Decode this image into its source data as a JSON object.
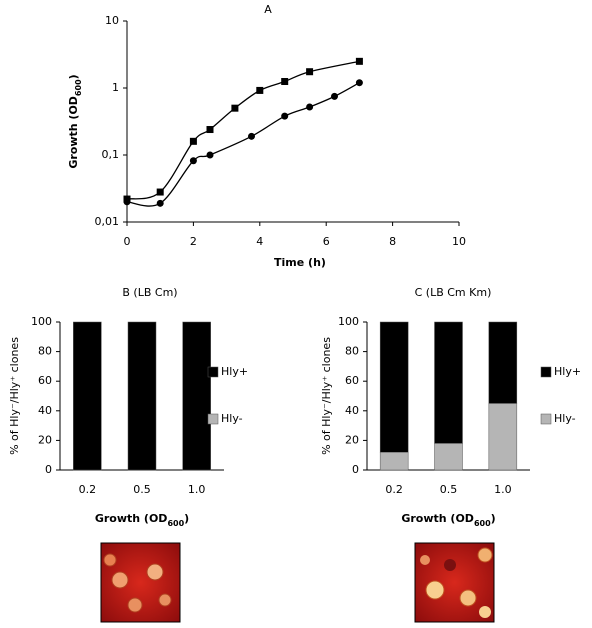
{
  "chart_data": [
    {
      "type": "line",
      "title": "A",
      "xlabel": "Time (h)",
      "ylabel": [
        "Growth (OD",
        "600",
        ")"
      ],
      "yscale": "log",
      "xlim": [
        0,
        10
      ],
      "xticks": [
        0,
        2,
        4,
        6,
        8,
        10
      ],
      "ylim": [
        0.01,
        10
      ],
      "yticks": [
        {
          "value": 0.01,
          "label": "0,01"
        },
        {
          "value": 0.1,
          "label": "0,1"
        },
        1,
        10
      ],
      "series": [
        {
          "color": "#000000",
          "marker": "square",
          "x": [
            0,
            1,
            2,
            2.5,
            3.25,
            4,
            4.75,
            5.5,
            7
          ],
          "values": [
            0.022,
            0.028,
            0.16,
            0.24,
            0.5,
            0.92,
            1.25,
            1.75,
            2.5
          ]
        },
        {
          "color": "#000000",
          "marker": "circle",
          "x": [
            0,
            1,
            2,
            2.5,
            3.75,
            4.75,
            5.5,
            6.25,
            7
          ],
          "values": [
            0.02,
            0.019,
            0.082,
            0.1,
            0.19,
            0.38,
            0.52,
            0.75,
            1.2
          ]
        }
      ]
    },
    {
      "type": "stacked_bar",
      "title": "B (LB Cm)",
      "xlabel": [
        "Growth (OD",
        "600",
        ")"
      ],
      "ylabel": "% of Hly⁻/Hly⁺ clones",
      "categories": [
        "0.2",
        "0.5",
        "1.0"
      ],
      "ylim": [
        0,
        100
      ],
      "yticks": [
        0,
        20,
        40,
        60,
        80,
        100
      ],
      "legend": "right",
      "series": [
        {
          "name": "Hly+",
          "color": "#000000",
          "values": [
            100,
            100,
            100
          ]
        },
        {
          "name": "Hly-",
          "color": "#b5b5b5",
          "values": [
            0,
            0,
            0
          ]
        }
      ]
    },
    {
      "type": "stacked_bar",
      "title": "C (LB Cm Km)",
      "xlabel": [
        "Growth (OD",
        "600",
        ")"
      ],
      "ylabel": "% of Hly⁻/Hly⁺ clones",
      "categories": [
        "0.2",
        "0.5",
        "1.0"
      ],
      "ylim": [
        0,
        100
      ],
      "yticks": [
        0,
        20,
        40,
        60,
        80,
        100
      ],
      "legend": "right",
      "series": [
        {
          "name": "Hly+",
          "color": "#000000",
          "values": [
            88,
            82,
            55
          ]
        },
        {
          "name": "Hly-",
          "color": "#b5b5b5",
          "values": [
            12,
            18,
            45
          ]
        }
      ]
    }
  ]
}
